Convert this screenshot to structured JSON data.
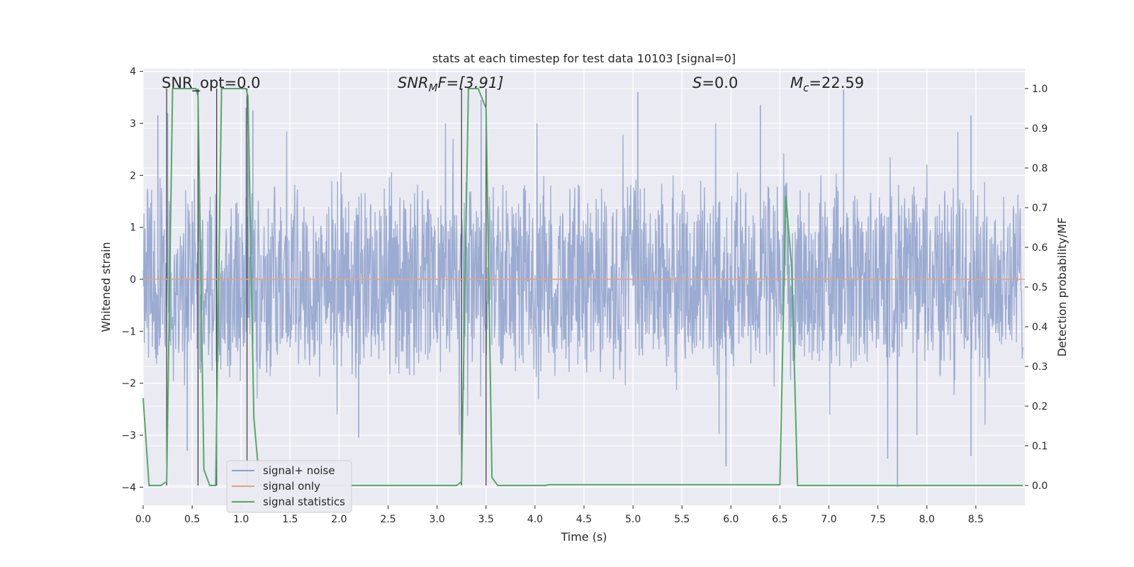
{
  "chart_data": {
    "type": "line",
    "title": "stats at each timestep for test data 10103 [signal=0]",
    "xlabel": "Time (s)",
    "ylabel_left": "Whitened strain",
    "ylabel_right": "Detection probability/MF",
    "xlim": [
      0,
      9.0
    ],
    "ylim_left": [
      -4.35,
      4.05
    ],
    "ylim_right": [
      -0.05,
      1.05
    ],
    "grid": true,
    "x_ticks": [
      0.0,
      0.5,
      1.0,
      1.5,
      2.0,
      2.5,
      3.0,
      3.5,
      4.0,
      4.5,
      5.0,
      5.5,
      6.0,
      6.5,
      7.0,
      7.5,
      8.0,
      8.5
    ],
    "x_tick_labels": [
      "0.0",
      "0.5",
      "1.0",
      "1.5",
      "2.0",
      "2.5",
      "3.0",
      "3.5",
      "4.0",
      "4.5",
      "5.0",
      "5.5",
      "6.0",
      "6.5",
      "7.0",
      "7.5",
      "8.0",
      "8.5"
    ],
    "y_left_ticks": [
      -4,
      -3,
      -2,
      -1,
      0,
      1,
      2,
      3,
      4
    ],
    "y_left_tick_labels": [
      "−4",
      "−3",
      "−2",
      "−1",
      "0",
      "1",
      "2",
      "3",
      "4"
    ],
    "y_right_ticks": [
      0.0,
      0.1,
      0.2,
      0.3,
      0.4,
      0.5,
      0.6,
      0.7,
      0.8,
      0.9,
      1.0
    ],
    "y_right_tick_labels": [
      "0.0",
      "0.1",
      "0.2",
      "0.3",
      "0.4",
      "0.5",
      "0.6",
      "0.7",
      "0.8",
      "0.9",
      "1.0"
    ],
    "legend_placement": "lower-left",
    "annotations": {
      "snr_opt": "SNR_opt=0.0",
      "snr_mf_sym": "SNR",
      "snr_mf_sub": "M",
      "snr_mf_rest": "F=[3.91]",
      "s_sym": "S",
      "s_rest": "=0.0",
      "mc_sym": "M",
      "mc_sub": "c",
      "mc_rest": "=22.59"
    },
    "series": [
      {
        "name": "signal+ noise",
        "color": "#8da0cb",
        "axis": "left",
        "description_kind": "noise",
        "duration": 8.98,
        "envelope_typical": 1.6,
        "extreme_peaks": [
          {
            "x": 0.15,
            "y": 3.15
          },
          {
            "x": 0.25,
            "y": 3.2
          },
          {
            "x": 1.05,
            "y": 3.3
          },
          {
            "x": 1.12,
            "y": 3.25
          },
          {
            "x": 3.45,
            "y": 3.45
          },
          {
            "x": 5.05,
            "y": 3.6
          },
          {
            "x": 6.3,
            "y": 3.35
          },
          {
            "x": 7.15,
            "y": 3.65
          },
          {
            "x": 8.45,
            "y": 3.15
          },
          {
            "x": 0.45,
            "y": -3.3
          },
          {
            "x": 5.95,
            "y": -3.6
          },
          {
            "x": 7.6,
            "y": -3.45
          },
          {
            "x": 7.7,
            "y": -4.0
          },
          {
            "x": 8.45,
            "y": -3.4
          },
          {
            "x": 2.2,
            "y": -3.05
          }
        ]
      },
      {
        "name": "signal only",
        "color": "#e5a184",
        "axis": "left",
        "x": [
          0.0,
          9.0
        ],
        "y": [
          0.0,
          0.0
        ]
      },
      {
        "name": "signal statistics",
        "color": "#55a868",
        "axis": "right",
        "x": [
          0.0,
          0.06,
          0.18,
          0.24,
          0.3,
          0.54,
          0.56,
          0.62,
          0.68,
          0.74,
          0.8,
          1.05,
          1.07,
          1.13,
          1.19,
          3.2,
          3.25,
          3.32,
          3.42,
          3.5,
          3.56,
          3.62,
          4.1,
          4.15,
          6.5,
          6.56,
          6.62,
          6.68,
          8.98
        ],
        "y": [
          0.22,
          0.0,
          0.0,
          0.01,
          1.0,
          1.0,
          0.98,
          0.04,
          0.0,
          0.0,
          1.0,
          1.0,
          0.98,
          0.17,
          0.0,
          0.0,
          0.01,
          1.0,
          1.0,
          0.95,
          0.02,
          0.0,
          0.0,
          0.002,
          0.002,
          0.73,
          0.55,
          0.0,
          0.0
        ]
      }
    ],
    "vertical_markers": [
      {
        "x": 0.24,
        "y_top": 1.0,
        "y_bottom": 0.0
      },
      {
        "x": 0.56,
        "y_top": 1.0,
        "y_bottom": 0.0
      },
      {
        "x": 0.75,
        "y_top": 1.0,
        "y_bottom": 0.0
      },
      {
        "x": 1.06,
        "y_top": 1.0,
        "y_bottom": 0.0
      },
      {
        "x": 3.25,
        "y_top": 1.0,
        "y_bottom": 0.0
      },
      {
        "x": 3.5,
        "y_top": 1.0,
        "y_bottom": 0.0
      }
    ]
  }
}
